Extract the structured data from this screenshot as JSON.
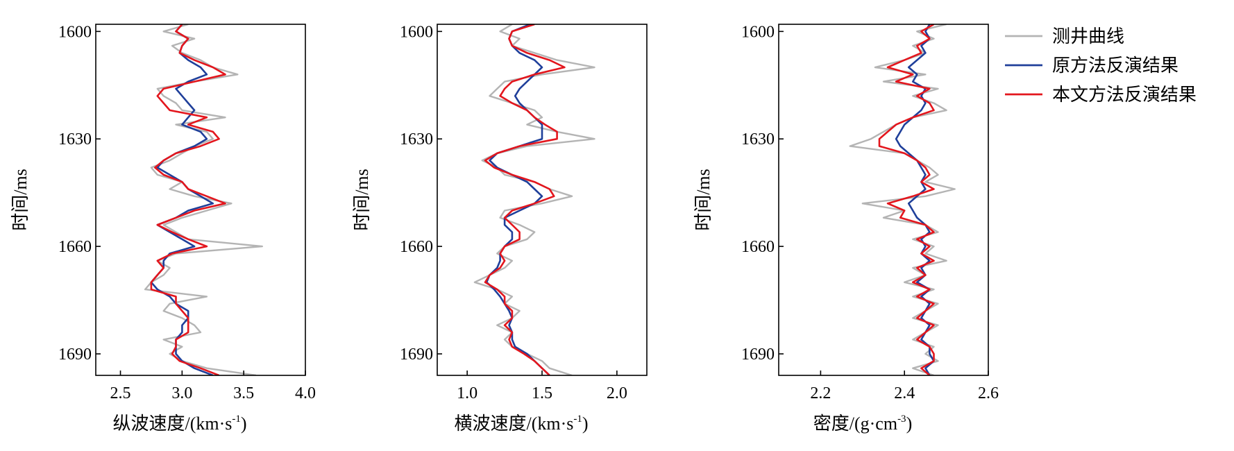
{
  "legend": {
    "position": "top-right",
    "items": [
      {
        "label": "测井曲线",
        "color": "#b4b4b4"
      },
      {
        "label": "原方法反演结果",
        "color": "#1f3f9a"
      },
      {
        "label": "本文方法反演结果",
        "color": "#e3161d"
      }
    ]
  },
  "chart_data": [
    {
      "type": "line",
      "xlabel_parts": [
        "纵波速度/(km·s",
        "-1",
        ")"
      ],
      "ylabel": "时间/ms",
      "xlim": [
        2.3,
        4.0
      ],
      "ylim": [
        1598,
        1696
      ],
      "y_reversed": true,
      "xticks": [
        2.5,
        3.0,
        3.5,
        4.0
      ],
      "xtick_labels": [
        "2.5",
        "3.0",
        "3.5",
        "4.0"
      ],
      "yticks": [
        1600,
        1630,
        1660,
        1690
      ],
      "ytick_labels": [
        "1600",
        "1630",
        "1660",
        "1690"
      ],
      "grid": false,
      "y": [
        1598,
        1600,
        1602,
        1604,
        1606,
        1608,
        1610,
        1612,
        1614,
        1616,
        1618,
        1620,
        1622,
        1624,
        1626,
        1628,
        1630,
        1632,
        1634,
        1636,
        1638,
        1640,
        1642,
        1644,
        1646,
        1648,
        1650,
        1652,
        1654,
        1656,
        1658,
        1660,
        1662,
        1664,
        1666,
        1668,
        1670,
        1672,
        1674,
        1676,
        1678,
        1680,
        1682,
        1684,
        1686,
        1688,
        1690,
        1692,
        1694,
        1696
      ],
      "series": [
        {
          "name": "测井曲线",
          "color": "#b4b4b4",
          "values": [
            3.05,
            2.85,
            3.1,
            2.92,
            3.0,
            3.15,
            3.25,
            3.45,
            3.1,
            2.8,
            2.85,
            2.95,
            3.0,
            3.35,
            2.95,
            3.2,
            3.25,
            3.1,
            3.0,
            2.9,
            2.75,
            2.8,
            3.0,
            2.9,
            3.1,
            3.4,
            3.2,
            3.0,
            2.85,
            2.95,
            3.05,
            3.65,
            2.95,
            2.8,
            2.9,
            2.85,
            2.75,
            2.7,
            3.2,
            2.9,
            2.85,
            3.0,
            3.1,
            3.15,
            2.85,
            3.0,
            2.9,
            3.0,
            3.2,
            3.6
          ]
        },
        {
          "name": "原方法反演结果",
          "color": "#1f3f9a",
          "values": [
            3.0,
            2.95,
            3.05,
            3.0,
            2.98,
            3.05,
            3.15,
            3.2,
            3.05,
            2.95,
            3.0,
            3.05,
            3.1,
            3.05,
            3.0,
            3.15,
            3.2,
            3.1,
            2.95,
            2.85,
            2.8,
            2.9,
            3.0,
            3.05,
            3.15,
            3.25,
            3.05,
            2.95,
            2.8,
            2.9,
            3.0,
            3.1,
            2.9,
            2.85,
            2.85,
            2.8,
            2.75,
            2.8,
            2.9,
            2.95,
            3.05,
            3.05,
            3.0,
            3.0,
            2.95,
            2.95,
            2.95,
            3.0,
            3.1,
            3.25
          ]
        },
        {
          "name": "本文方法反演结果",
          "color": "#e3161d",
          "values": [
            3.0,
            2.95,
            3.05,
            3.0,
            2.98,
            3.1,
            3.25,
            3.35,
            3.1,
            2.85,
            2.8,
            2.85,
            2.9,
            3.2,
            3.05,
            3.25,
            3.3,
            3.15,
            2.95,
            2.85,
            2.78,
            2.85,
            3.0,
            3.05,
            3.2,
            3.35,
            3.1,
            2.95,
            2.8,
            2.92,
            3.05,
            3.2,
            2.92,
            2.8,
            2.85,
            2.8,
            2.75,
            2.75,
            2.95,
            2.95,
            3.0,
            3.05,
            3.05,
            3.05,
            2.95,
            2.95,
            2.92,
            2.98,
            3.15,
            3.3
          ]
        }
      ]
    },
    {
      "type": "line",
      "xlabel_parts": [
        "横波速度/(km·s",
        "-1",
        ")"
      ],
      "ylabel": "时间/ms",
      "xlim": [
        0.8,
        2.2
      ],
      "ylim": [
        1598,
        1696
      ],
      "y_reversed": true,
      "xticks": [
        1.0,
        1.5,
        2.0
      ],
      "xtick_labels": [
        "1.0",
        "1.5",
        "2.0"
      ],
      "yticks": [
        1600,
        1630,
        1660,
        1690
      ],
      "ytick_labels": [
        "1600",
        "1630",
        "1660",
        "1690"
      ],
      "grid": false,
      "y": [
        1598,
        1600,
        1602,
        1604,
        1606,
        1608,
        1610,
        1612,
        1614,
        1616,
        1618,
        1620,
        1622,
        1624,
        1626,
        1628,
        1630,
        1632,
        1634,
        1636,
        1638,
        1640,
        1642,
        1644,
        1646,
        1648,
        1650,
        1652,
        1654,
        1656,
        1658,
        1660,
        1662,
        1664,
        1666,
        1668,
        1670,
        1672,
        1674,
        1676,
        1678,
        1680,
        1682,
        1684,
        1686,
        1688,
        1690,
        1692,
        1694,
        1696
      ],
      "series": [
        {
          "name": "测井曲线",
          "color": "#b4b4b4",
          "values": [
            1.3,
            1.22,
            1.35,
            1.3,
            1.45,
            1.6,
            1.85,
            1.5,
            1.25,
            1.2,
            1.15,
            1.3,
            1.45,
            1.5,
            1.4,
            1.6,
            1.85,
            1.4,
            1.2,
            1.1,
            1.2,
            1.25,
            1.45,
            1.55,
            1.7,
            1.5,
            1.25,
            1.22,
            1.35,
            1.45,
            1.4,
            1.25,
            1.2,
            1.3,
            1.25,
            1.15,
            1.05,
            1.2,
            1.3,
            1.25,
            1.35,
            1.3,
            1.2,
            1.3,
            1.25,
            1.3,
            1.4,
            1.5,
            1.55,
            1.7
          ]
        },
        {
          "name": "原方法反演结果",
          "color": "#1f3f9a",
          "values": [
            1.42,
            1.3,
            1.28,
            1.3,
            1.35,
            1.45,
            1.5,
            1.45,
            1.4,
            1.35,
            1.32,
            1.35,
            1.4,
            1.45,
            1.5,
            1.5,
            1.5,
            1.35,
            1.2,
            1.15,
            1.2,
            1.3,
            1.4,
            1.45,
            1.5,
            1.45,
            1.35,
            1.25,
            1.25,
            1.3,
            1.3,
            1.25,
            1.22,
            1.22,
            1.2,
            1.15,
            1.13,
            1.18,
            1.22,
            1.25,
            1.28,
            1.3,
            1.28,
            1.3,
            1.3,
            1.32,
            1.4,
            1.45,
            1.5,
            1.55
          ]
        },
        {
          "name": "本文方法反演结果",
          "color": "#e3161d",
          "values": [
            1.45,
            1.3,
            1.28,
            1.3,
            1.4,
            1.55,
            1.65,
            1.45,
            1.3,
            1.25,
            1.22,
            1.3,
            1.4,
            1.45,
            1.52,
            1.6,
            1.6,
            1.35,
            1.2,
            1.12,
            1.18,
            1.3,
            1.45,
            1.55,
            1.58,
            1.45,
            1.3,
            1.25,
            1.3,
            1.35,
            1.35,
            1.25,
            1.22,
            1.25,
            1.22,
            1.15,
            1.12,
            1.2,
            1.25,
            1.25,
            1.3,
            1.3,
            1.25,
            1.3,
            1.28,
            1.3,
            1.38,
            1.45,
            1.5,
            1.55
          ]
        }
      ]
    },
    {
      "type": "line",
      "xlabel_parts": [
        "密度/(g·cm",
        "-3",
        ")"
      ],
      "ylabel": "时间/ms",
      "xlim": [
        2.1,
        2.6
      ],
      "ylim": [
        1598,
        1696
      ],
      "y_reversed": true,
      "xticks": [
        2.2,
        2.4,
        2.6
      ],
      "xtick_labels": [
        "2.2",
        "2.4",
        "2.6"
      ],
      "yticks": [
        1600,
        1630,
        1660,
        1690
      ],
      "ytick_labels": [
        "1600",
        "1630",
        "1660",
        "1690"
      ],
      "grid": false,
      "y": [
        1598,
        1600,
        1602,
        1604,
        1606,
        1608,
        1610,
        1612,
        1614,
        1616,
        1618,
        1620,
        1622,
        1624,
        1626,
        1628,
        1630,
        1632,
        1634,
        1636,
        1638,
        1640,
        1642,
        1644,
        1646,
        1648,
        1650,
        1652,
        1654,
        1656,
        1658,
        1660,
        1662,
        1664,
        1666,
        1668,
        1670,
        1672,
        1674,
        1676,
        1678,
        1680,
        1682,
        1684,
        1686,
        1688,
        1690,
        1692,
        1694,
        1696
      ],
      "series": [
        {
          "name": "测井曲线",
          "color": "#b4b4b4",
          "values": [
            2.5,
            2.43,
            2.47,
            2.42,
            2.45,
            2.4,
            2.33,
            2.45,
            2.35,
            2.48,
            2.42,
            2.47,
            2.5,
            2.42,
            2.38,
            2.35,
            2.32,
            2.27,
            2.4,
            2.43,
            2.46,
            2.48,
            2.45,
            2.52,
            2.45,
            2.3,
            2.4,
            2.35,
            2.45,
            2.48,
            2.42,
            2.47,
            2.45,
            2.5,
            2.42,
            2.45,
            2.4,
            2.47,
            2.42,
            2.48,
            2.45,
            2.42,
            2.48,
            2.45,
            2.42,
            2.47,
            2.45,
            2.48,
            2.42,
            2.47
          ]
        },
        {
          "name": "原方法反演结果",
          "color": "#1f3f9a",
          "values": [
            2.46,
            2.45,
            2.46,
            2.44,
            2.45,
            2.43,
            2.41,
            2.43,
            2.42,
            2.45,
            2.44,
            2.45,
            2.44,
            2.42,
            2.4,
            2.39,
            2.38,
            2.39,
            2.41,
            2.43,
            2.44,
            2.45,
            2.44,
            2.45,
            2.43,
            2.41,
            2.42,
            2.43,
            2.45,
            2.46,
            2.44,
            2.45,
            2.44,
            2.46,
            2.44,
            2.45,
            2.43,
            2.46,
            2.44,
            2.46,
            2.45,
            2.44,
            2.46,
            2.45,
            2.44,
            2.46,
            2.46,
            2.47,
            2.45,
            2.46
          ]
        },
        {
          "name": "本文方法反演结果",
          "color": "#e3161d",
          "values": [
            2.47,
            2.44,
            2.46,
            2.43,
            2.44,
            2.4,
            2.36,
            2.42,
            2.38,
            2.46,
            2.43,
            2.46,
            2.47,
            2.42,
            2.38,
            2.36,
            2.34,
            2.34,
            2.4,
            2.43,
            2.45,
            2.46,
            2.44,
            2.47,
            2.42,
            2.36,
            2.4,
            2.39,
            2.45,
            2.47,
            2.43,
            2.46,
            2.44,
            2.47,
            2.43,
            2.45,
            2.42,
            2.46,
            2.43,
            2.47,
            2.45,
            2.43,
            2.47,
            2.45,
            2.43,
            2.46,
            2.47,
            2.47,
            2.44,
            2.46
          ]
        }
      ]
    }
  ]
}
